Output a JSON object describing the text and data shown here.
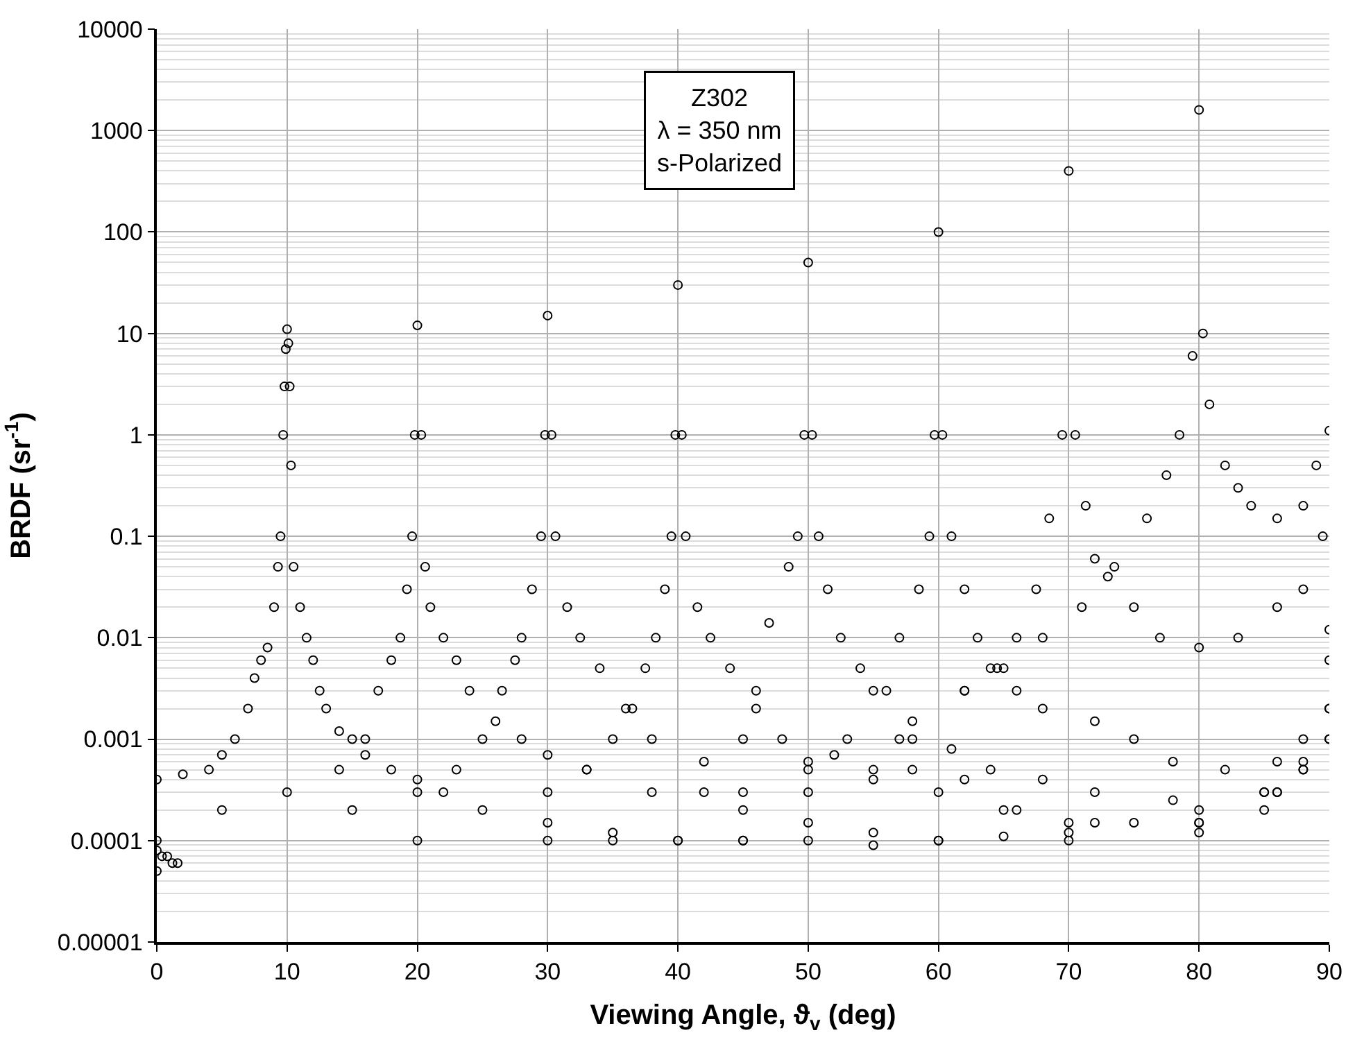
{
  "chart_data": {
    "type": "scatter",
    "xlabel": "Viewing Angle, ϑ$_{v}$ (deg)",
    "ylabel": "BRDF (sr$^{-1}$)",
    "annotations": [
      "Z302\nλ = 350 nm\ns-Polarized"
    ],
    "log": "y",
    "grid": true,
    "marker": "circle",
    "xlim": [
      0,
      90
    ],
    "xticks": [
      0,
      10,
      20,
      30,
      40,
      50,
      60,
      70,
      80,
      90
    ],
    "ylim": [
      1e-05,
      10000
    ],
    "yticks": [
      {
        "value": 1e-05,
        "label": "0.00001"
      },
      {
        "value": 0.0001,
        "label": "0.0001"
      },
      {
        "value": 0.001,
        "label": "0.001"
      },
      {
        "value": 0.01,
        "label": "0.01"
      },
      {
        "value": 0.1,
        "label": "0.1"
      },
      {
        "value": 1,
        "label": "1"
      },
      {
        "value": 10,
        "label": "10"
      },
      {
        "value": 100,
        "label": "100"
      },
      {
        "value": 1000,
        "label": "1000"
      },
      {
        "value": 10000,
        "label": "10000"
      }
    ],
    "series": [
      {
        "color": "#000000",
        "x": [
          0,
          2,
          4,
          5,
          6,
          7,
          7.5,
          8,
          8.5,
          9,
          9.3,
          9.5,
          9.7,
          9.8,
          9.9,
          10,
          10.1,
          10.2,
          10.3,
          10.5,
          11,
          11.5,
          12,
          12.5,
          13,
          14,
          15,
          16,
          18,
          20,
          22,
          25,
          30,
          35,
          40,
          45,
          50,
          55,
          60,
          65,
          70,
          75,
          80,
          85,
          88,
          90
        ],
        "values": [
          0.0004,
          0.00045,
          0.0005,
          0.0007,
          0.001,
          0.002,
          0.004,
          0.006,
          0.008,
          0.02,
          0.05,
          0.1,
          1,
          3,
          7,
          11,
          8,
          3,
          0.5,
          0.05,
          0.02,
          0.01,
          0.006,
          0.003,
          0.002,
          0.0012,
          0.001,
          0.0007,
          0.0005,
          0.0004,
          0.0003,
          0.0002,
          0.00015,
          0.00012,
          0.0001,
          0.0001,
          0.0001,
          9e-05,
          0.0001,
          0.00011,
          0.00012,
          0.00015,
          0.0002,
          0.0003,
          0.0005,
          0.002
        ]
      },
      {
        "color": "#000000",
        "x": [
          0,
          5,
          10,
          14,
          16,
          17,
          18,
          18.7,
          19.2,
          19.6,
          19.8,
          20,
          20.3,
          20.6,
          21,
          22,
          23,
          24,
          26,
          28,
          30,
          33,
          38,
          45,
          50,
          55,
          60,
          70,
          80,
          85,
          88,
          90
        ],
        "values": [
          0.0001,
          0.0002,
          0.0003,
          0.0005,
          0.001,
          0.003,
          0.006,
          0.01,
          0.03,
          0.1,
          1,
          12,
          1,
          0.05,
          0.02,
          0.01,
          0.006,
          0.003,
          0.0015,
          0.001,
          0.0007,
          0.0005,
          0.0003,
          0.0002,
          0.00015,
          0.00012,
          0.0001,
          0.0001,
          0.00012,
          0.0002,
          0.0005,
          0.001
        ]
      },
      {
        "color": "#000000",
        "x": [
          0,
          15,
          20,
          23,
          25,
          26.5,
          27.5,
          28,
          28.8,
          29.5,
          29.8,
          30,
          30.3,
          30.6,
          31.5,
          32.5,
          34,
          36,
          38,
          42,
          50,
          55,
          60,
          65,
          70,
          80,
          86,
          90
        ],
        "values": [
          8e-05,
          0.0002,
          0.0003,
          0.0005,
          0.001,
          0.003,
          0.006,
          0.01,
          0.03,
          0.1,
          1,
          15,
          1,
          0.1,
          0.02,
          0.01,
          0.005,
          0.002,
          0.001,
          0.0006,
          0.0005,
          0.0004,
          0.0003,
          0.0002,
          0.00015,
          0.00015,
          0.0003,
          0.002
        ]
      },
      {
        "color": "#000000",
        "x": [
          0.4,
          20,
          30,
          33,
          35,
          36.5,
          37.5,
          38.3,
          39,
          39.5,
          39.8,
          40,
          40.3,
          40.6,
          41.5,
          42.5,
          44,
          46,
          48,
          52,
          58,
          62,
          66,
          72,
          80,
          86,
          90
        ],
        "values": [
          7e-05,
          0.0001,
          0.0003,
          0.0005,
          0.001,
          0.002,
          0.005,
          0.01,
          0.03,
          0.1,
          1,
          30,
          1,
          0.1,
          0.02,
          0.01,
          0.005,
          0.002,
          0.001,
          0.0007,
          0.0005,
          0.0004,
          0.0002,
          0.00015,
          0.00015,
          0.0003,
          0.001
        ]
      },
      {
        "color": "#000000",
        "x": [
          0.8,
          30,
          42,
          45,
          46,
          47,
          48.5,
          49.2,
          49.7,
          50,
          50.3,
          50.8,
          51.5,
          52.5,
          54,
          56,
          58,
          61,
          64,
          68,
          72,
          78,
          85,
          88,
          90
        ],
        "values": [
          7e-05,
          0.0001,
          0.0003,
          0.001,
          0.003,
          0.014,
          0.05,
          0.1,
          1,
          50,
          1,
          0.1,
          0.03,
          0.01,
          0.005,
          0.003,
          0.0015,
          0.0008,
          0.0005,
          0.0004,
          0.0003,
          0.00025,
          0.0003,
          0.0006,
          0.006
        ]
      },
      {
        "color": "#000000",
        "x": [
          1.2,
          35,
          45,
          50,
          53,
          55,
          57,
          58.5,
          59.3,
          59.7,
          60,
          60.3,
          61,
          62,
          63,
          64.5,
          66,
          68,
          72,
          75,
          78,
          82,
          86,
          88,
          90
        ],
        "values": [
          6e-05,
          0.0001,
          0.0003,
          0.0006,
          0.001,
          0.003,
          0.01,
          0.03,
          0.1,
          1,
          100,
          1,
          0.1,
          0.03,
          0.01,
          0.005,
          0.003,
          0.002,
          0.0015,
          0.001,
          0.0006,
          0.0005,
          0.0006,
          0.001,
          0.012
        ]
      },
      {
        "color": "#000000",
        "x": [
          1.6,
          40,
          50,
          57,
          62,
          64,
          66,
          67.5,
          68.5,
          69.5,
          70,
          70.5,
          71.3,
          72,
          73,
          75,
          77,
          80,
          83,
          86,
          88,
          89.5
        ],
        "values": [
          6e-05,
          0.0001,
          0.0003,
          0.001,
          0.003,
          0.005,
          0.01,
          0.03,
          0.15,
          1,
          400,
          1,
          0.2,
          0.06,
          0.04,
          0.02,
          0.01,
          0.008,
          0.01,
          0.02,
          0.03,
          0.1
        ]
      },
      {
        "color": "#000000",
        "x": [
          0,
          45,
          55,
          58,
          62,
          65,
          68,
          71,
          73.5,
          76,
          77.5,
          78.5,
          79.5,
          80,
          80.3,
          80.8,
          82,
          83,
          84,
          86,
          88,
          89,
          90
        ],
        "values": [
          5e-05,
          0.0001,
          0.0005,
          0.001,
          0.003,
          0.005,
          0.01,
          0.02,
          0.05,
          0.15,
          0.4,
          1,
          6,
          1600,
          10,
          2,
          0.5,
          0.3,
          0.2,
          0.15,
          0.2,
          0.5,
          1.1
        ]
      }
    ]
  }
}
